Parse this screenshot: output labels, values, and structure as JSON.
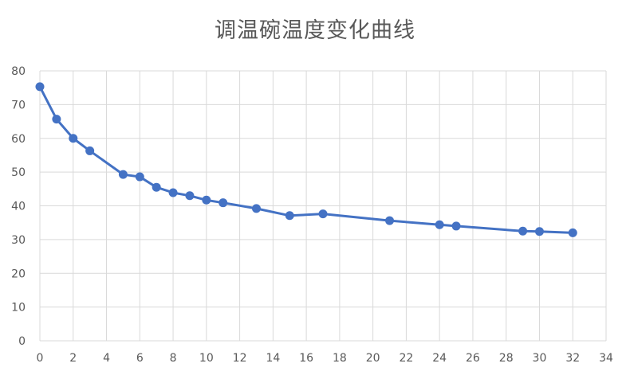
{
  "chart_data": {
    "type": "line",
    "title": "调温碗温度变化曲线",
    "xlabel": "",
    "ylabel": "",
    "xlim": [
      0,
      34
    ],
    "ylim": [
      0,
      80
    ],
    "x_ticks": [
      0,
      2,
      4,
      6,
      8,
      10,
      12,
      14,
      16,
      18,
      20,
      22,
      24,
      26,
      28,
      30,
      32,
      34
    ],
    "y_ticks": [
      0,
      10,
      20,
      30,
      40,
      50,
      60,
      70,
      80
    ],
    "grid": true,
    "legend": "none",
    "series": [
      {
        "color": "#4472c4",
        "points": [
          [
            0,
            75.3
          ],
          [
            1,
            65.7
          ],
          [
            2,
            60.0
          ],
          [
            3,
            56.3
          ],
          [
            5,
            49.3
          ],
          [
            6,
            48.6
          ],
          [
            7,
            45.5
          ],
          [
            8,
            43.9
          ],
          [
            9,
            43.0
          ],
          [
            10,
            41.7
          ],
          [
            11,
            40.9
          ],
          [
            13,
            39.2
          ],
          [
            15,
            37.1
          ],
          [
            17,
            37.6
          ],
          [
            21,
            35.6
          ],
          [
            24,
            34.4
          ],
          [
            25,
            34.0
          ],
          [
            29,
            32.5
          ],
          [
            30,
            32.4
          ],
          [
            32,
            32.0
          ]
        ]
      }
    ]
  },
  "colors": {
    "gridline": "#d9d9d9",
    "series": "#4472c4",
    "text": "#595959"
  }
}
